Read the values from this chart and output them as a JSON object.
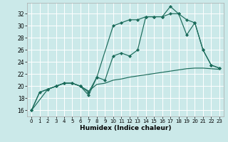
{
  "xlabel": "Humidex (Indice chaleur)",
  "background_color": "#cbe9e9",
  "grid_color": "#ffffff",
  "line_color": "#1a6b5a",
  "xlim": [
    -0.5,
    23.5
  ],
  "ylim": [
    15.0,
    33.8
  ],
  "yticks": [
    16,
    18,
    20,
    22,
    24,
    26,
    28,
    30,
    32
  ],
  "xticks": [
    0,
    1,
    2,
    3,
    4,
    5,
    6,
    7,
    8,
    9,
    10,
    11,
    12,
    13,
    14,
    15,
    16,
    17,
    18,
    19,
    20,
    21,
    22,
    23
  ],
  "curve_flat_x": [
    0,
    1,
    2,
    3,
    4,
    5,
    6,
    7,
    8,
    9,
    10,
    11,
    12,
    13,
    14,
    15,
    16,
    17,
    18,
    19,
    20,
    21,
    22,
    23
  ],
  "curve_flat_y": [
    16.0,
    19.0,
    19.5,
    20.0,
    20.5,
    20.5,
    20.0,
    19.2,
    20.3,
    20.5,
    21.0,
    21.2,
    21.5,
    21.7,
    21.9,
    22.1,
    22.3,
    22.5,
    22.7,
    22.9,
    23.0,
    23.0,
    22.9,
    22.8
  ],
  "curve_mid_x": [
    0,
    1,
    2,
    3,
    4,
    5,
    6,
    7,
    8,
    9,
    10,
    11,
    12,
    13,
    14,
    15,
    16,
    17,
    18,
    19,
    20,
    21,
    22,
    23
  ],
  "curve_mid_y": [
    16.0,
    19.0,
    19.5,
    20.0,
    20.5,
    20.5,
    20.0,
    19.0,
    21.5,
    21.0,
    25.0,
    25.5,
    25.0,
    26.0,
    31.5,
    31.5,
    31.5,
    32.0,
    32.0,
    31.0,
    30.5,
    26.0,
    23.5,
    23.0
  ],
  "curve_top_x": [
    0,
    2,
    3,
    4,
    5,
    6,
    7,
    8,
    10,
    11,
    12,
    13,
    14,
    15,
    16,
    17,
    18,
    19,
    20,
    21,
    22,
    23
  ],
  "curve_top_y": [
    16.0,
    19.5,
    20.0,
    20.5,
    20.5,
    20.0,
    18.5,
    21.5,
    30.0,
    30.5,
    31.0,
    31.0,
    31.5,
    31.5,
    31.5,
    33.2,
    32.0,
    28.5,
    30.5,
    26.0,
    23.5,
    23.0
  ],
  "tick_fontsize": 5.5,
  "xlabel_fontsize": 6.5
}
